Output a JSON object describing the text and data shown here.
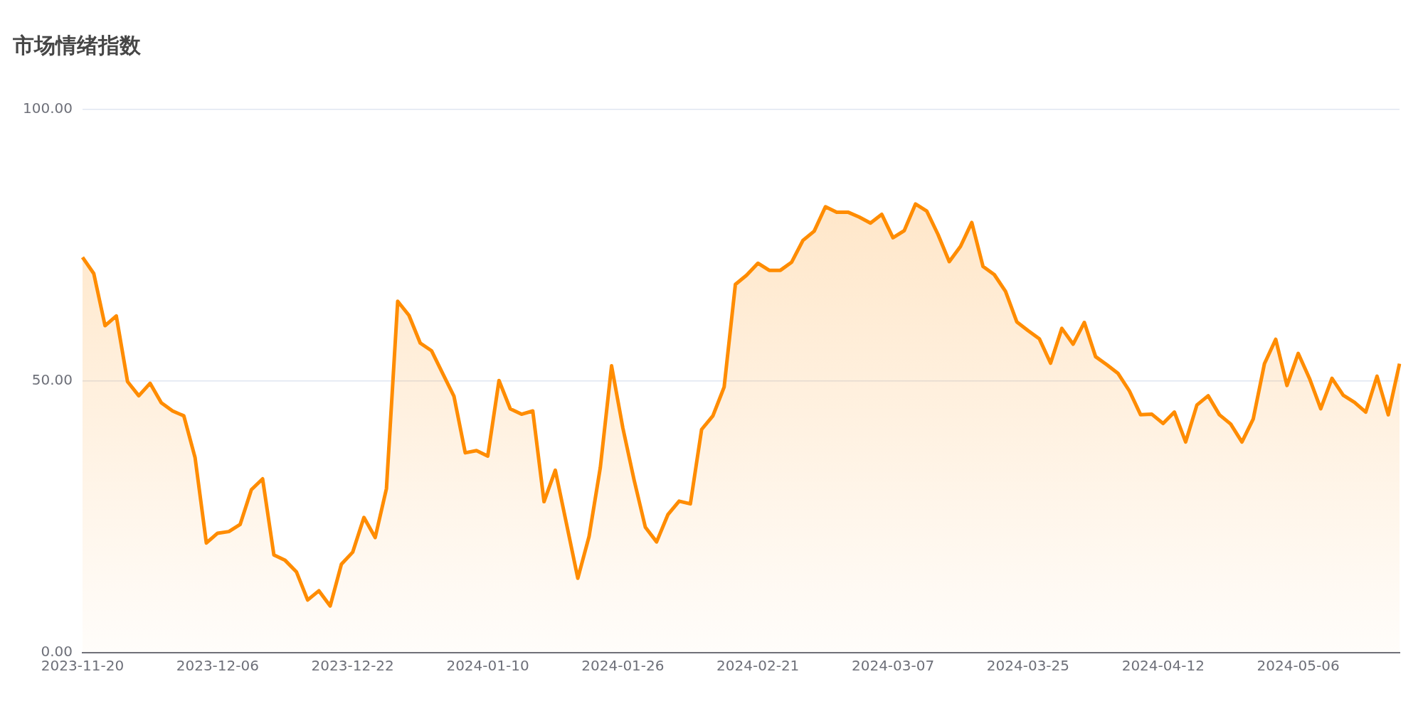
{
  "chart_data": {
    "type": "area",
    "title": "市场情绪指数",
    "categories": [
      "2023-11-20",
      null,
      null,
      null,
      null,
      null,
      null,
      null,
      null,
      null,
      null,
      null,
      "2023-12-06",
      null,
      null,
      null,
      null,
      null,
      null,
      null,
      null,
      null,
      null,
      null,
      "2023-12-22",
      null,
      null,
      null,
      null,
      null,
      null,
      null,
      null,
      null,
      null,
      null,
      "2024-01-10",
      null,
      null,
      null,
      null,
      null,
      null,
      null,
      null,
      null,
      null,
      null,
      "2024-01-26",
      null,
      null,
      null,
      null,
      null,
      null,
      null,
      null,
      null,
      null,
      null,
      "2024-02-21",
      null,
      null,
      null,
      null,
      null,
      null,
      null,
      null,
      null,
      null,
      null,
      "2024-03-07",
      null,
      null,
      null,
      null,
      null,
      null,
      null,
      null,
      null,
      null,
      null,
      "2024-03-25",
      null,
      null,
      null,
      null,
      null,
      null,
      null,
      null,
      null,
      null,
      null,
      "2024-04-12",
      null,
      null,
      null,
      null,
      null,
      null,
      null,
      null,
      null,
      null,
      null,
      "2024-05-06",
      null,
      null,
      null,
      null,
      null,
      null,
      null,
      null,
      null
    ],
    "values": [
      72.8,
      69.8,
      60.2,
      62.0,
      49.9,
      47.3,
      49.6,
      46.0,
      44.5,
      43.6,
      35.9,
      20.2,
      22.0,
      22.3,
      23.6,
      30.0,
      32.0,
      18.0,
      17.0,
      14.9,
      9.7,
      11.4,
      8.6,
      16.3,
      18.5,
      24.9,
      21.2,
      30.2,
      64.7,
      62.1,
      57.0,
      55.6,
      51.4,
      47.2,
      36.8,
      37.2,
      36.2,
      50.1,
      44.9,
      43.9,
      44.5,
      27.8,
      33.6,
      23.7,
      13.7,
      21.4,
      34.1,
      52.8,
      41.4,
      31.8,
      23.1,
      20.4,
      25.4,
      27.9,
      27.4,
      41.1,
      43.6,
      48.9,
      67.8,
      69.5,
      71.7,
      70.4,
      70.4,
      71.9,
      75.9,
      77.6,
      82.1,
      81.1,
      81.1,
      80.2,
      79.1,
      80.7,
      76.4,
      77.7,
      82.6,
      81.3,
      77.0,
      72.0,
      74.8,
      79.2,
      71.1,
      69.6,
      66.5,
      60.9,
      59.3,
      57.8,
      53.3,
      59.7,
      56.8,
      60.8,
      54.5,
      53.0,
      51.4,
      48.2,
      43.8,
      43.9,
      42.2,
      44.3,
      38.8,
      45.6,
      47.3,
      43.8,
      42.1,
      38.8,
      43.0,
      53.2,
      57.7,
      49.2,
      55.1,
      50.5,
      44.9,
      50.5,
      47.4,
      46.1,
      44.3,
      50.9,
      43.8,
      53.2
    ],
    "color": "#ff8c00",
    "ylim": [
      0,
      100
    ],
    "yticks": [
      {
        "value": 0,
        "label": "0.00"
      },
      {
        "value": 50,
        "label": "50.00"
      },
      {
        "value": 100,
        "label": "100.00"
      }
    ],
    "grid": "y"
  }
}
